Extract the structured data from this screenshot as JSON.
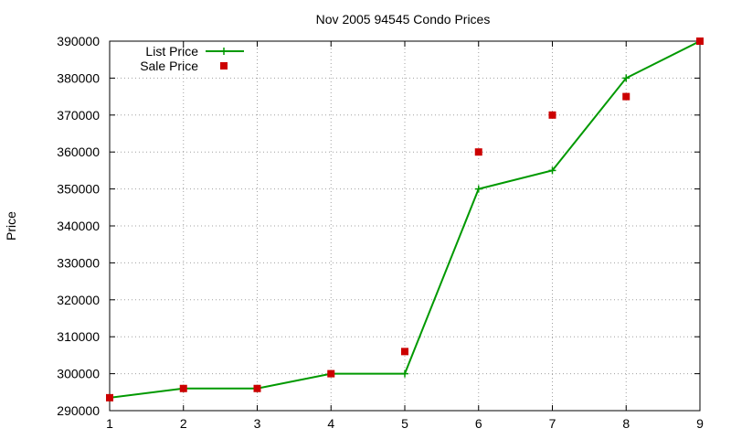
{
  "chart_data": {
    "type": "line",
    "title": "Nov 2005 94545 Condo Prices",
    "xlabel": "",
    "ylabel": "Price",
    "x": [
      1,
      2,
      3,
      4,
      5,
      6,
      7,
      8,
      9
    ],
    "xlim": [
      1,
      9
    ],
    "ylim": [
      290000,
      390000
    ],
    "xticks": [
      "1",
      "2",
      "3",
      "4",
      "5",
      "6",
      "7",
      "8",
      "9"
    ],
    "yticks": [
      "290000",
      "300000",
      "310000",
      "320000",
      "330000",
      "340000",
      "350000",
      "360000",
      "370000",
      "380000",
      "390000"
    ],
    "grid": true,
    "legend_position": "top-left",
    "series": [
      {
        "name": "List Price",
        "style": "lines+points",
        "color": "#009900",
        "x": [
          1,
          2,
          3,
          4,
          5,
          6,
          7,
          8,
          9
        ],
        "values": [
          293500,
          296000,
          296000,
          300000,
          300000,
          350000,
          355000,
          380000,
          390000
        ]
      },
      {
        "name": "Sale Price",
        "style": "points",
        "color": "#cc0000",
        "x": [
          1,
          2,
          3,
          4,
          5,
          6,
          7,
          8,
          9
        ],
        "values": [
          293500,
          296000,
          296000,
          300000,
          306000,
          360000,
          370000,
          375000,
          390000
        ]
      }
    ]
  }
}
